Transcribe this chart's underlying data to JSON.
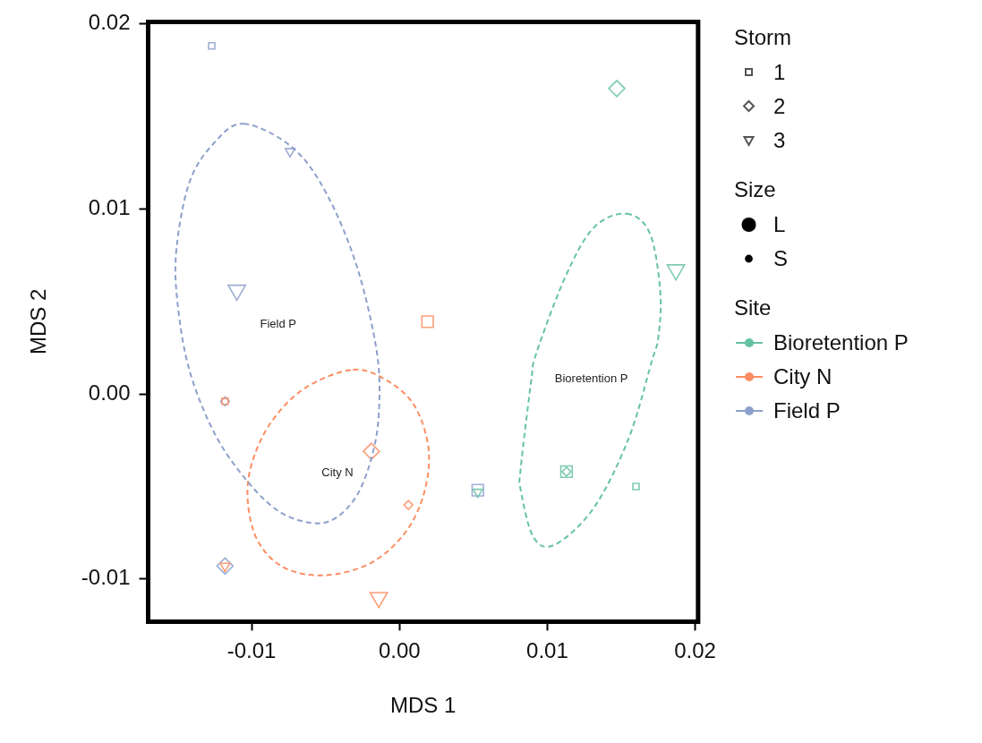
{
  "chart_data": {
    "type": "scatter",
    "xlabel": "MDS 1",
    "ylabel": "MDS 2",
    "legend_title": "Site",
    "legend": "right",
    "grid": false,
    "xlim": [
      -0.017,
      0.0202
    ],
    "xticks": [
      {
        "value": -0.01,
        "label": "-0.01"
      },
      {
        "value": 0,
        "label": "0.00"
      },
      {
        "value": 0.01,
        "label": "0.01"
      },
      {
        "value": 0.02,
        "label": "0.02"
      }
    ],
    "ylim": [
      -0.0123,
      0.0201
    ],
    "yticks": [
      {
        "value": -0.01,
        "label": "-0.01"
      },
      {
        "value": 0,
        "label": "0.00"
      },
      {
        "value": 0.01,
        "label": "0.01"
      },
      {
        "value": 0.02,
        "label": "0.02"
      }
    ],
    "annotations": [
      "Storm",
      "1",
      "2",
      "3",
      "Size",
      "L",
      "S",
      "Bioretention P",
      "City N",
      "Field P"
    ],
    "series": [
      {
        "name": "Bioretention P",
        "type": "scatter",
        "marker": "square",
        "color": "#66c2a5",
        "x": [
          0.0113,
          0.016
        ],
        "values": [
          -0.0042,
          -0.005
        ],
        "sizes": [
          1,
          0.3
        ]
      },
      {
        "type": "scatter",
        "marker": "diamond",
        "color": "#66c2a5",
        "x": [
          0.0147,
          0.0113
        ],
        "values": [
          0.0165,
          -0.0042
        ],
        "sizes": [
          1,
          0.3
        ]
      },
      {
        "type": "scatter",
        "marker": "triangle",
        "color": "#66c2a5",
        "x": [
          0.0187,
          0.0053
        ],
        "values": [
          0.0067,
          -0.0053
        ],
        "sizes": [
          1,
          0.3
        ]
      },
      {
        "name": "City N",
        "type": "scatter",
        "marker": "square",
        "color": "#fc8d62",
        "x": [
          0.0019,
          -0.0118
        ],
        "values": [
          0.0039,
          -0.0004
        ],
        "sizes": [
          1,
          0.3
        ]
      },
      {
        "type": "scatter",
        "marker": "diamond",
        "color": "#fc8d62",
        "x": [
          -0.0019,
          0.0006
        ],
        "values": [
          -0.0031,
          -0.006
        ],
        "sizes": [
          1,
          0.3
        ]
      },
      {
        "type": "scatter",
        "marker": "triangle",
        "color": "#fc8d62",
        "x": [
          -0.0014,
          -0.0118
        ],
        "values": [
          -0.011,
          -0.0093
        ],
        "sizes": [
          1,
          0.3
        ]
      },
      {
        "name": "Field P",
        "type": "scatter",
        "marker": "square",
        "color": "#8da0cb",
        "x": [
          0.0053,
          -0.0127
        ],
        "values": [
          -0.0052,
          0.0188
        ],
        "sizes": [
          1,
          0.3
        ]
      },
      {
        "type": "scatter",
        "marker": "diamond",
        "color": "#8da0cb",
        "x": [
          -0.0118,
          -0.0118
        ],
        "values": [
          -0.0093,
          -0.0004
        ],
        "sizes": [
          1,
          0.3
        ]
      },
      {
        "type": "scatter",
        "marker": "triangle",
        "color": "#8da0cb",
        "x": [
          -0.011,
          -0.0074
        ],
        "values": [
          0.0056,
          0.0131
        ],
        "sizes": [
          1,
          0.3
        ]
      }
    ]
  }
}
